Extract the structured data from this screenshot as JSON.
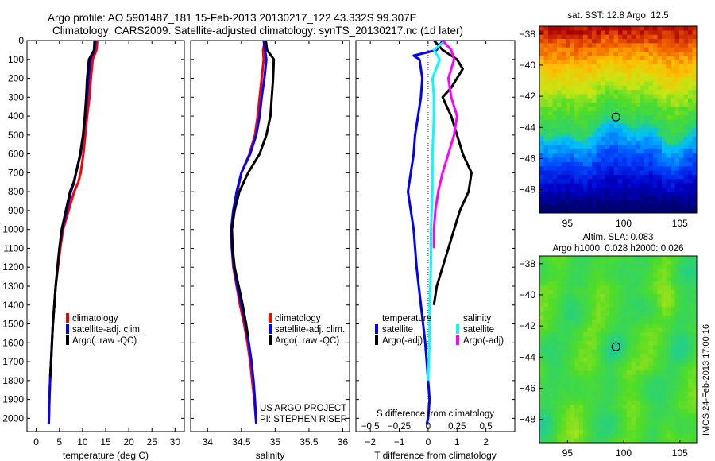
{
  "header": {
    "title_line1": "Argo profile: AO 5901487_181 15-Feb-2013 20130217_122 43.332S 99.307E",
    "title_line2": "Climatology: CARS2009. Satellite-adjusted climatology: synTS_20130217.nc (1d later)"
  },
  "side_label": "IMOS 24-Feb-2013 17:00:16",
  "chart_data": [
    {
      "type": "line",
      "id": "temperature",
      "xlabel": "temperature (deg C)",
      "ylabel": "",
      "xlim": [
        -2,
        32
      ],
      "ylim": [
        2070,
        0
      ],
      "xticks": [
        0,
        5,
        10,
        15,
        20,
        25,
        30
      ],
      "yticks": [
        0,
        100,
        200,
        300,
        400,
        500,
        600,
        700,
        800,
        900,
        1000,
        1100,
        1200,
        1300,
        1400,
        1500,
        1600,
        1700,
        1800,
        1900,
        2000
      ],
      "series": [
        {
          "name": "climatology",
          "color": "#ff0000",
          "x": [
            13.2,
            13.0,
            12.2,
            11.8,
            11.5,
            11.0,
            10.6,
            10.2,
            9.6,
            9.1,
            8.2,
            7.0,
            5.8,
            5.2,
            4.7,
            4.2,
            3.9,
            3.6,
            3.4,
            3.2,
            3.0,
            2.85,
            2.7
          ],
          "y": [
            0,
            50,
            100,
            200,
            300,
            400,
            500,
            600,
            700,
            750,
            800,
            900,
            1000,
            1100,
            1200,
            1300,
            1400,
            1500,
            1600,
            1700,
            1800,
            1900,
            2030
          ]
        },
        {
          "name": "satellite-adj. clim.",
          "color": "#0000ff",
          "x": [
            12.8,
            12.6,
            11.7,
            11.3,
            11.0,
            10.6,
            10.2,
            9.6,
            8.6,
            8.2,
            7.5,
            6.6,
            5.6,
            5.0,
            4.6,
            4.2,
            3.9,
            3.6,
            3.4,
            3.2,
            3.0,
            2.85,
            2.7
          ],
          "y": [
            0,
            50,
            100,
            200,
            300,
            400,
            500,
            600,
            700,
            750,
            800,
            900,
            1000,
            1100,
            1200,
            1300,
            1400,
            1500,
            1600,
            1700,
            1800,
            1900,
            2030
          ]
        },
        {
          "name": "Argo(..raw -QC)",
          "color": "#000000",
          "x": [
            12.6,
            12.5,
            11.4,
            11.0,
            10.8,
            10.5,
            10.1,
            9.5,
            8.6,
            8.1,
            7.3,
            6.4,
            5.5,
            5.0,
            4.6,
            4.2,
            3.9,
            3.6,
            3.4,
            3.2,
            3.0
          ],
          "y": [
            0,
            50,
            100,
            200,
            300,
            400,
            500,
            600,
            700,
            750,
            800,
            900,
            1000,
            1100,
            1200,
            1300,
            1400,
            1500,
            1600,
            1700,
            1780
          ]
        }
      ]
    },
    {
      "type": "line",
      "id": "salinity",
      "xlabel": "salinity",
      "ylabel": "",
      "xlim": [
        33.75,
        36.1
      ],
      "ylim": [
        2070,
        0
      ],
      "xticks": [
        34,
        34.5,
        35,
        35.5,
        36
      ],
      "series": [
        {
          "name": "climatology",
          "color": "#ff0000",
          "x": [
            34.85,
            34.82,
            34.83,
            34.8,
            34.77,
            34.74,
            34.7,
            34.62,
            34.5,
            34.44,
            34.38,
            34.35,
            34.36,
            34.38,
            34.43,
            34.48,
            34.54,
            34.59,
            34.63,
            34.66,
            34.69,
            34.72
          ],
          "y": [
            0,
            50,
            100,
            200,
            300,
            400,
            500,
            600,
            700,
            800,
            900,
            1000,
            1100,
            1200,
            1300,
            1400,
            1500,
            1600,
            1700,
            1800,
            1900,
            2030
          ]
        },
        {
          "name": "satellite-adj. clim.",
          "color": "#0000ff",
          "x": [
            34.83,
            34.85,
            34.87,
            34.84,
            34.8,
            34.77,
            34.72,
            34.63,
            34.5,
            34.43,
            34.38,
            34.35,
            34.36,
            34.39,
            34.44,
            34.5,
            34.56,
            34.61,
            34.65,
            34.68,
            34.7,
            34.72
          ],
          "y": [
            0,
            50,
            100,
            200,
            300,
            400,
            500,
            600,
            700,
            800,
            900,
            1000,
            1100,
            1200,
            1300,
            1400,
            1500,
            1600,
            1700,
            1800,
            1900,
            2030
          ]
        },
        {
          "name": "Argo(..raw -QC)",
          "color": "#000000",
          "x": [
            34.86,
            34.88,
            34.98,
            34.97,
            34.95,
            34.93,
            34.87,
            34.77,
            34.6,
            34.47,
            34.4,
            34.36,
            34.37,
            34.4,
            34.46,
            34.52,
            34.57,
            34.6
          ],
          "y": [
            0,
            50,
            100,
            200,
            300,
            400,
            500,
            600,
            700,
            800,
            900,
            1000,
            1100,
            1200,
            1300,
            1400,
            1500,
            1570
          ]
        }
      ],
      "annotation": [
        "US ARGO PROJECT",
        "PI: STEPHEN RISER"
      ]
    },
    {
      "type": "line",
      "id": "difference",
      "xlabel": "T difference from climatology",
      "x2label": "S difference from climatology",
      "ylabel": "",
      "xlim": [
        -2.5,
        3
      ],
      "ylim": [
        2070,
        0
      ],
      "xticks": [
        -2,
        -1,
        0,
        1,
        2
      ],
      "x2ticks": [
        "-0.5",
        "-0.25",
        "0",
        "0.25",
        "0.5"
      ],
      "legend": {
        "heading_left": "temperature",
        "heading_right": "salinity"
      },
      "series": [
        {
          "name": "satellite",
          "group": "temperature",
          "color": "#0000ff",
          "x": [
            0.5,
            0.3,
            -0.5,
            -0.3,
            -0.2,
            -0.25,
            -0.35,
            -0.45,
            -0.5,
            -0.6,
            -0.7,
            -0.6,
            -0.5,
            -0.4,
            -0.25,
            -0.1,
            0.0,
            0.05,
            0.0,
            -0.05
          ],
          "y": [
            0,
            50,
            80,
            100,
            200,
            300,
            400,
            500,
            600,
            700,
            800,
            900,
            1000,
            1200,
            1400,
            1600,
            1800,
            1900,
            2000,
            2030
          ]
        },
        {
          "name": "Argo(-adj)",
          "group": "temperature",
          "color": "#000000",
          "x": [
            0.2,
            0.5,
            1.0,
            1.2,
            0.8,
            0.5,
            0.8,
            1.0,
            1.2,
            1.5,
            1.4,
            1.1,
            0.9,
            0.7,
            0.5,
            0.3,
            0.2
          ],
          "y": [
            0,
            50,
            100,
            150,
            250,
            300,
            400,
            500,
            600,
            700,
            800,
            900,
            1000,
            1100,
            1200,
            1300,
            1400
          ]
        },
        {
          "name": "satellite",
          "group": "salinity",
          "color": "#00ffff",
          "x": [
            0.6,
            0.2,
            0.4,
            0.15,
            0.2,
            0.2,
            0.15,
            0.15,
            0.1,
            0.1,
            0.05,
            0.05,
            0.0
          ],
          "y": [
            0,
            50,
            100,
            200,
            300,
            400,
            600,
            800,
            1000,
            1200,
            1400,
            1600,
            1800
          ]
        },
        {
          "name": "Argo(-adj)",
          "group": "salinity",
          "color": "#ff00ff",
          "x": [
            0.5,
            0.8,
            0.9,
            0.7,
            0.8,
            1.0,
            0.9,
            0.7,
            0.5,
            0.35,
            0.25,
            0.2,
            0.2
          ],
          "y": [
            0,
            50,
            100,
            200,
            300,
            400,
            500,
            600,
            700,
            800,
            900,
            1000,
            1100
          ]
        }
      ]
    },
    {
      "type": "heatmap",
      "id": "sst_map",
      "title": "sat. SST: 12.8 Argo: 12.5",
      "xlim": [
        92.5,
        106.5
      ],
      "ylim": [
        -49.5,
        -37.5
      ],
      "xticks": [
        95,
        100,
        105
      ],
      "yticks": [
        -38,
        -40,
        -42,
        -44,
        -46,
        -48
      ],
      "marker": {
        "lon": 99.307,
        "lat": -43.332
      }
    },
    {
      "type": "heatmap",
      "id": "sla_map",
      "title": "Altim. SLA: 0.083",
      "subtitle": "Argo h1000: 0.028 h2000: 0.026",
      "xlim": [
        92.5,
        106.5
      ],
      "ylim": [
        -49.5,
        -37.5
      ],
      "xticks": [
        95,
        100,
        105
      ],
      "yticks": [
        -38,
        -40,
        -42,
        -44,
        -46,
        -48
      ],
      "marker": {
        "lon": 99.307,
        "lat": -43.332
      }
    }
  ]
}
